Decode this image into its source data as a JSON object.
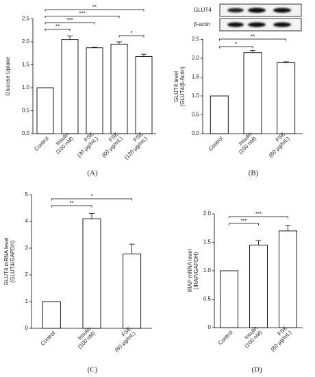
{
  "chart_data": [
    {
      "type": "bar",
      "panel_label": "(A)",
      "ylabel": [
        "Glucose Uptake"
      ],
      "categories": [
        [
          "Control"
        ],
        [
          "Insulin",
          "(100 nM)"
        ],
        [
          "FSE",
          "(30 μg/mL)"
        ],
        [
          "FSE",
          "(60 μg/mL)"
        ],
        [
          "FSE",
          "(120 μg/mL)"
        ]
      ],
      "values": [
        1.0,
        2.05,
        1.87,
        1.95,
        1.68
      ],
      "errors": [
        0,
        0.08,
        0.01,
        0.05,
        0.05
      ],
      "color": "#ffffff",
      "ylim": [
        0,
        2.5
      ],
      "yticks": [
        {
          "value": 0,
          "label": "0.0"
        },
        0.5,
        {
          "value": 1,
          "label": "1.0"
        },
        1.5,
        {
          "value": 2,
          "label": "2.0"
        },
        2.5
      ],
      "brackets": [
        {
          "from": 0,
          "to": 4,
          "label": "**"
        },
        {
          "from": 0,
          "to": 3,
          "label": "***"
        },
        {
          "from": 0,
          "to": 2,
          "label": "***"
        },
        {
          "from": 0,
          "to": 1,
          "label": "**"
        },
        {
          "from": 3,
          "to": 4,
          "label": "*"
        }
      ]
    },
    {
      "type": "bar",
      "panel_label": "(B)",
      "ylabel": [
        "GLUT4 level",
        "(GLUT4/β-Actin)"
      ],
      "blot_labels": [
        "GLUT4",
        "β-actin"
      ],
      "categories": [
        [
          "Control"
        ],
        [
          "Insulin",
          "(100 nM)"
        ],
        [
          "FSE",
          "(60 μg/mL)"
        ]
      ],
      "values": [
        1.0,
        2.15,
        1.88
      ],
      "errors": [
        0,
        0.06,
        0.03
      ],
      "color": "#ffffff",
      "ylim": [
        0,
        2.5
      ],
      "yticks": [
        {
          "value": 0,
          "label": "0.0"
        },
        0.5,
        {
          "value": 1,
          "label": "1.0"
        },
        1.5,
        {
          "value": 2,
          "label": "2.0"
        },
        2.5
      ],
      "brackets": [
        {
          "from": 0,
          "to": 2,
          "label": "**"
        },
        {
          "from": 0,
          "to": 1,
          "label": "*"
        }
      ]
    },
    {
      "type": "bar",
      "panel_label": "(C)",
      "ylabel": [
        "GLUT4 mRNA level",
        "(GLUT4/GAPDH)"
      ],
      "categories": [
        [
          "Control"
        ],
        [
          "Insulin",
          "(100 nM)"
        ],
        [
          "FSE",
          "(60 μg/mL)"
        ]
      ],
      "values": [
        1.0,
        4.1,
        2.78
      ],
      "errors": [
        0,
        0.2,
        0.37
      ],
      "color": "#ffffff",
      "ylim": [
        0,
        5
      ],
      "yticks": [
        0,
        1,
        2,
        3,
        4,
        5
      ],
      "brackets": [
        {
          "from": 0,
          "to": 2,
          "label": "*"
        },
        {
          "from": 0,
          "to": 1,
          "label": "**"
        }
      ]
    },
    {
      "type": "bar",
      "panel_label": "(D)",
      "ylabel": [
        "IRAP mRNA level",
        "(IRAP/GAPDH)"
      ],
      "categories": [
        [
          "Control"
        ],
        [
          "Insulin",
          "(100 nM)"
        ],
        [
          "FSE",
          "(60 μg/mL)"
        ]
      ],
      "values": [
        1.0,
        1.45,
        1.7
      ],
      "errors": [
        0,
        0.08,
        0.1
      ],
      "color": "#ffffff",
      "ylim": [
        0,
        2
      ],
      "yticks": [
        0,
        0.5,
        {
          "value": 1,
          "label": "1.0"
        },
        1.5,
        {
          "value": 2,
          "label": "2.0"
        }
      ],
      "brackets": [
        {
          "from": 0,
          "to": 2,
          "label": "***"
        },
        {
          "from": 0,
          "to": 1,
          "label": "***"
        }
      ]
    }
  ]
}
